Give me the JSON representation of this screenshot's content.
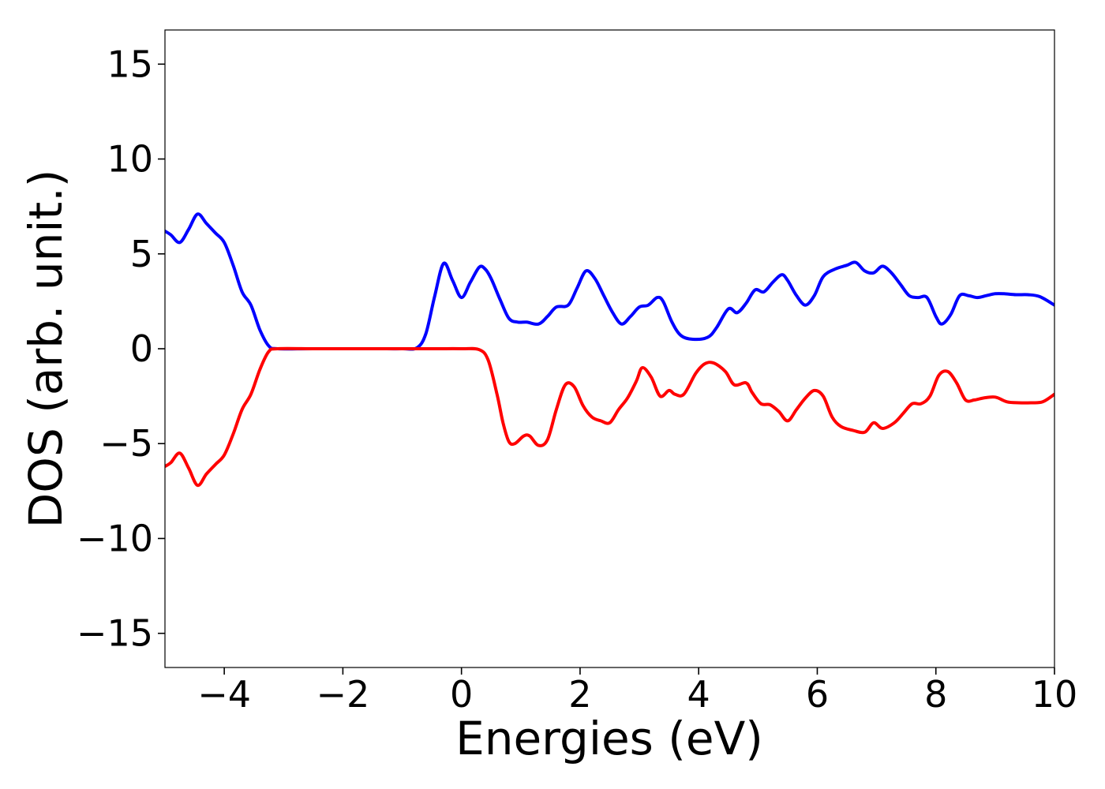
{
  "chart_data": {
    "type": "line",
    "xlabel": "Energies (eV)",
    "ylabel": "DOS (arb. unit.)",
    "xlim": [
      -5,
      10
    ],
    "ylim": [
      -16.8,
      16.8
    ],
    "xticks": [
      -4,
      -2,
      0,
      2,
      4,
      6,
      8,
      10
    ],
    "xtick_labels": [
      "−4",
      "−2",
      "0",
      "2",
      "4",
      "6",
      "8",
      "10"
    ],
    "yticks": [
      -15,
      -10,
      -5,
      0,
      5,
      10,
      15
    ],
    "ytick_labels": [
      "−15",
      "−10",
      "−5",
      "0",
      "5",
      "10",
      "15"
    ],
    "grid": false,
    "legend": "none",
    "series": [
      {
        "color": "#0000ff",
        "x": [
          -5.0,
          -4.9,
          -4.75,
          -4.6,
          -4.45,
          -4.3,
          -4.15,
          -4.0,
          -3.85,
          -3.7,
          -3.55,
          -3.4,
          -3.25,
          -3.1,
          -2.5,
          -1.5,
          -1.0,
          -0.75,
          -0.6,
          -0.45,
          -0.3,
          -0.15,
          0.0,
          0.15,
          0.3,
          0.4,
          0.5,
          0.65,
          0.8,
          0.95,
          1.1,
          1.3,
          1.45,
          1.6,
          1.8,
          1.95,
          2.1,
          2.25,
          2.4,
          2.55,
          2.7,
          2.85,
          3.0,
          3.15,
          3.3,
          3.4,
          3.55,
          3.7,
          3.9,
          4.15,
          4.3,
          4.5,
          4.65,
          4.8,
          4.95,
          5.1,
          5.25,
          5.4,
          5.5,
          5.65,
          5.8,
          5.95,
          6.1,
          6.3,
          6.5,
          6.65,
          6.8,
          6.95,
          7.1,
          7.25,
          7.4,
          7.55,
          7.7,
          7.85,
          8.0,
          8.1,
          8.25,
          8.4,
          8.55,
          8.7,
          8.85,
          9.0,
          9.15,
          9.35,
          9.55,
          9.75,
          10.0
        ],
        "y": [
          6.2,
          6.0,
          5.6,
          6.3,
          7.1,
          6.6,
          6.1,
          5.6,
          4.4,
          3.0,
          2.3,
          1.0,
          0.15,
          0.0,
          0.0,
          0.0,
          0.0,
          0.05,
          0.8,
          2.8,
          4.5,
          3.6,
          2.7,
          3.5,
          4.3,
          4.2,
          3.7,
          2.6,
          1.6,
          1.4,
          1.4,
          1.3,
          1.7,
          2.2,
          2.3,
          3.2,
          4.1,
          3.7,
          2.8,
          1.9,
          1.3,
          1.7,
          2.2,
          2.3,
          2.7,
          2.5,
          1.4,
          0.7,
          0.5,
          0.6,
          1.1,
          2.1,
          1.9,
          2.4,
          3.1,
          3.0,
          3.5,
          3.9,
          3.6,
          2.8,
          2.3,
          2.8,
          3.8,
          4.2,
          4.4,
          4.55,
          4.1,
          4.0,
          4.35,
          4.0,
          3.4,
          2.8,
          2.7,
          2.7,
          1.7,
          1.3,
          1.8,
          2.8,
          2.8,
          2.7,
          2.8,
          2.9,
          2.9,
          2.85,
          2.85,
          2.75,
          2.3
        ]
      },
      {
        "color": "#ff0000",
        "x": [
          -5.0,
          -4.9,
          -4.75,
          -4.6,
          -4.45,
          -4.3,
          -4.15,
          -4.0,
          -3.85,
          -3.7,
          -3.55,
          -3.4,
          -3.25,
          -3.1,
          -2.5,
          -1.5,
          -0.5,
          0.0,
          0.3,
          0.45,
          0.6,
          0.7,
          0.8,
          0.9,
          1.05,
          1.15,
          1.3,
          1.45,
          1.6,
          1.75,
          1.9,
          2.05,
          2.2,
          2.35,
          2.5,
          2.65,
          2.8,
          2.95,
          3.05,
          3.2,
          3.35,
          3.5,
          3.6,
          3.75,
          3.95,
          4.1,
          4.25,
          4.45,
          4.6,
          4.8,
          4.9,
          5.05,
          5.2,
          5.35,
          5.5,
          5.65,
          5.8,
          5.95,
          6.1,
          6.25,
          6.4,
          6.6,
          6.8,
          6.95,
          7.1,
          7.3,
          7.45,
          7.6,
          7.75,
          7.9,
          8.05,
          8.2,
          8.35,
          8.5,
          8.65,
          8.8,
          9.0,
          9.2,
          9.4,
          9.6,
          9.8,
          10.0
        ],
        "y": [
          -6.2,
          -6.0,
          -5.5,
          -6.3,
          -7.2,
          -6.6,
          -6.1,
          -5.6,
          -4.5,
          -3.2,
          -2.4,
          -1.1,
          -0.15,
          0.0,
          0.0,
          0.0,
          0.0,
          0.0,
          -0.05,
          -0.6,
          -2.4,
          -3.9,
          -4.9,
          -5.0,
          -4.6,
          -4.6,
          -5.1,
          -4.8,
          -3.2,
          -1.9,
          -2.0,
          -3.0,
          -3.6,
          -3.8,
          -3.9,
          -3.2,
          -2.6,
          -1.7,
          -1.0,
          -1.5,
          -2.5,
          -2.2,
          -2.4,
          -2.4,
          -1.3,
          -0.8,
          -0.75,
          -1.2,
          -1.9,
          -1.8,
          -2.3,
          -2.9,
          -2.95,
          -3.3,
          -3.8,
          -3.2,
          -2.6,
          -2.2,
          -2.5,
          -3.6,
          -4.1,
          -4.3,
          -4.4,
          -3.9,
          -4.2,
          -3.9,
          -3.4,
          -2.9,
          -2.9,
          -2.5,
          -1.4,
          -1.2,
          -1.8,
          -2.7,
          -2.7,
          -2.6,
          -2.55,
          -2.8,
          -2.85,
          -2.85,
          -2.8,
          -2.4
        ]
      }
    ]
  }
}
